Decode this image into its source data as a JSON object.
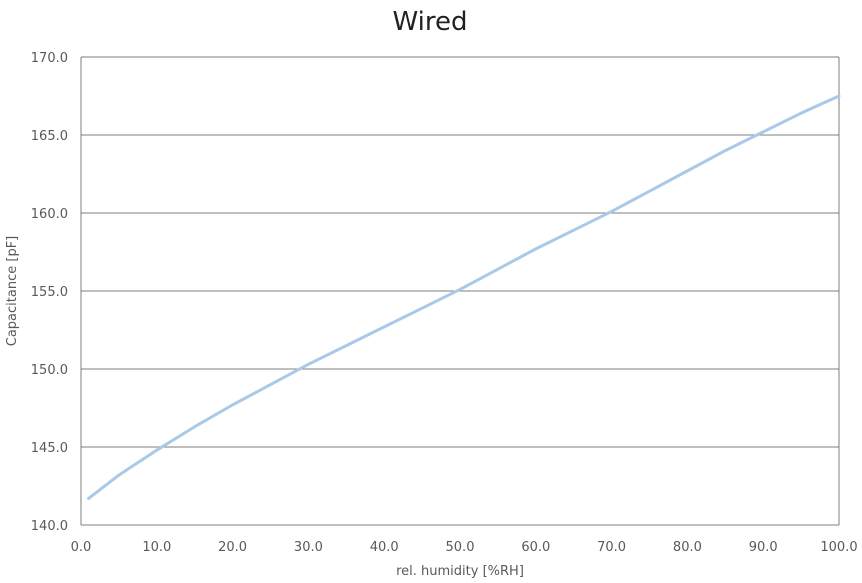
{
  "chart_data": {
    "type": "line",
    "title": "Wired",
    "xlabel": "rel. humidity [%RH]",
    "ylabel": "Capacitance [pF]",
    "xlim": [
      0,
      100
    ],
    "ylim": [
      140,
      170
    ],
    "xticks": [
      "0.0",
      "10.0",
      "20.0",
      "30.0",
      "40.0",
      "50.0",
      "60.0",
      "70.0",
      "80.0",
      "90.0",
      "100.0"
    ],
    "yticks": [
      "140.0",
      "145.0",
      "150.0",
      "155.0",
      "160.0",
      "165.0",
      "170.0"
    ],
    "grid": "horizontal",
    "series": [
      {
        "color": "#a9c9e8",
        "x": [
          1,
          5,
          10,
          15,
          20,
          25,
          30,
          35,
          40,
          45,
          50,
          55,
          60,
          65,
          70,
          75,
          80,
          85,
          90,
          95,
          100
        ],
        "y": [
          141.7,
          143.2,
          144.8,
          146.3,
          147.7,
          149.0,
          150.3,
          151.5,
          152.7,
          153.9,
          155.1,
          156.4,
          157.7,
          158.9,
          160.1,
          161.4,
          162.7,
          164.0,
          165.2,
          166.4,
          167.5
        ]
      }
    ]
  }
}
